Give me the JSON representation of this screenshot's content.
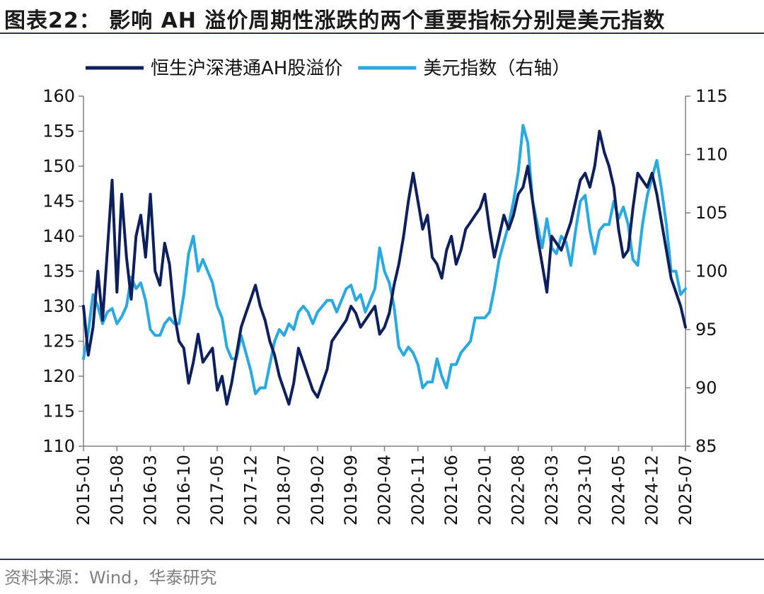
{
  "header": {
    "title": "图表22：  影响 AH 溢价周期性涨跌的两个重要指标分别是美元指数"
  },
  "footer": {
    "source": "资料来源：Wind，华泰研究"
  },
  "chart_data": {
    "type": "line",
    "x_ticks": [
      "2015-01",
      "2015-08",
      "2016-03",
      "2016-10",
      "2017-05",
      "2017-12",
      "2018-07",
      "2019-02",
      "2019-09",
      "2020-04",
      "2020-11",
      "2021-06",
      "2022-01",
      "2022-08",
      "2023-03",
      "2023-10",
      "2024-05",
      "2024-12",
      "2025-07"
    ],
    "y_left": {
      "ylim": [
        110,
        160
      ],
      "ticks": [
        "110",
        "115",
        "120",
        "125",
        "130",
        "135",
        "140",
        "145",
        "150",
        "155",
        "160"
      ]
    },
    "y_right": {
      "ylim": [
        85,
        115
      ],
      "ticks": [
        "85",
        "90",
        "95",
        "100",
        "105",
        "110",
        "115"
      ]
    },
    "legend_position": "top",
    "series": [
      {
        "name": "恒生沪深港通AH股溢价",
        "axis": "left",
        "color": "#0d1f5c",
        "points": [
          [
            "2015-01",
            130
          ],
          [
            "2015-02",
            123
          ],
          [
            "2015-03",
            127
          ],
          [
            "2015-04",
            135
          ],
          [
            "2015-05",
            128
          ],
          [
            "2015-06",
            138
          ],
          [
            "2015-07",
            148
          ],
          [
            "2015-08",
            132
          ],
          [
            "2015-09",
            146
          ],
          [
            "2015-10",
            137
          ],
          [
            "2015-11",
            131
          ],
          [
            "2015-12",
            140
          ],
          [
            "2016-01",
            143
          ],
          [
            "2016-02",
            137
          ],
          [
            "2016-03",
            146
          ],
          [
            "2016-04",
            135
          ],
          [
            "2016-05",
            133
          ],
          [
            "2016-06",
            139
          ],
          [
            "2016-07",
            136
          ],
          [
            "2016-08",
            129
          ],
          [
            "2016-09",
            125
          ],
          [
            "2016-10",
            124
          ],
          [
            "2016-11",
            119
          ],
          [
            "2016-12",
            122
          ],
          [
            "2017-01",
            126
          ],
          [
            "2017-02",
            122
          ],
          [
            "2017-03",
            123
          ],
          [
            "2017-04",
            124
          ],
          [
            "2017-05",
            118
          ],
          [
            "2017-06",
            120
          ],
          [
            "2017-07",
            116
          ],
          [
            "2017-08",
            119
          ],
          [
            "2017-09",
            123
          ],
          [
            "2017-10",
            127
          ],
          [
            "2017-11",
            129
          ],
          [
            "2017-12",
            131
          ],
          [
            "2018-01",
            133
          ],
          [
            "2018-02",
            130
          ],
          [
            "2018-03",
            128
          ],
          [
            "2018-04",
            125
          ],
          [
            "2018-05",
            123
          ],
          [
            "2018-06",
            120
          ],
          [
            "2018-07",
            118
          ],
          [
            "2018-08",
            116
          ],
          [
            "2018-09",
            119
          ],
          [
            "2018-10",
            124
          ],
          [
            "2018-11",
            122
          ],
          [
            "2018-12",
            120
          ],
          [
            "2019-01",
            118
          ],
          [
            "2019-02",
            117
          ],
          [
            "2019-03",
            119
          ],
          [
            "2019-04",
            121
          ],
          [
            "2019-05",
            125
          ],
          [
            "2019-06",
            126
          ],
          [
            "2019-07",
            127
          ],
          [
            "2019-08",
            128
          ],
          [
            "2019-09",
            130
          ],
          [
            "2019-10",
            129
          ],
          [
            "2019-11",
            127
          ],
          [
            "2019-12",
            128
          ],
          [
            "2020-01",
            129
          ],
          [
            "2020-02",
            130
          ],
          [
            "2020-03",
            126
          ],
          [
            "2020-04",
            127
          ],
          [
            "2020-05",
            129
          ],
          [
            "2020-06",
            133
          ],
          [
            "2020-07",
            136
          ],
          [
            "2020-08",
            140
          ],
          [
            "2020-09",
            145
          ],
          [
            "2020-10",
            149
          ],
          [
            "2020-11",
            145
          ],
          [
            "2020-12",
            141
          ],
          [
            "2021-01",
            143
          ],
          [
            "2021-02",
            137
          ],
          [
            "2021-03",
            136
          ],
          [
            "2021-04",
            134
          ],
          [
            "2021-05",
            138
          ],
          [
            "2021-06",
            140
          ],
          [
            "2021-07",
            136
          ],
          [
            "2021-08",
            138
          ],
          [
            "2021-09",
            141
          ],
          [
            "2021-10",
            142
          ],
          [
            "2021-11",
            143
          ],
          [
            "2021-12",
            144
          ],
          [
            "2022-01",
            146
          ],
          [
            "2022-02",
            141
          ],
          [
            "2022-03",
            137
          ],
          [
            "2022-04",
            140
          ],
          [
            "2022-05",
            143
          ],
          [
            "2022-06",
            141
          ],
          [
            "2022-07",
            143
          ],
          [
            "2022-08",
            146
          ],
          [
            "2022-09",
            147
          ],
          [
            "2022-10",
            150
          ],
          [
            "2022-11",
            145
          ],
          [
            "2022-12",
            140
          ],
          [
            "2023-01",
            136
          ],
          [
            "2023-02",
            132
          ],
          [
            "2023-03",
            140
          ],
          [
            "2023-04",
            139
          ],
          [
            "2023-05",
            138
          ],
          [
            "2023-06",
            140
          ],
          [
            "2023-07",
            142
          ],
          [
            "2023-08",
            145
          ],
          [
            "2023-09",
            148
          ],
          [
            "2023-10",
            149
          ],
          [
            "2023-11",
            147
          ],
          [
            "2023-12",
            150
          ],
          [
            "2024-01",
            155
          ],
          [
            "2024-02",
            152
          ],
          [
            "2024-03",
            150
          ],
          [
            "2024-04",
            147
          ],
          [
            "2024-05",
            141
          ],
          [
            "2024-06",
            137
          ],
          [
            "2024-07",
            138
          ],
          [
            "2024-08",
            144
          ],
          [
            "2024-09",
            149
          ],
          [
            "2024-10",
            148
          ],
          [
            "2024-11",
            147
          ],
          [
            "2024-12",
            149
          ],
          [
            "2025-01",
            146
          ],
          [
            "2025-02",
            142
          ],
          [
            "2025-03",
            138
          ],
          [
            "2025-04",
            134
          ],
          [
            "2025-05",
            132
          ],
          [
            "2025-06",
            130
          ],
          [
            "2025-07",
            127
          ]
        ]
      },
      {
        "name": "美元指数（右轴）",
        "axis": "right",
        "color": "#29a9e1",
        "points": [
          [
            "2015-01",
            92.5
          ],
          [
            "2015-02",
            94.8
          ],
          [
            "2015-03",
            98
          ],
          [
            "2015-04",
            97
          ],
          [
            "2015-05",
            95.5
          ],
          [
            "2015-06",
            96.5
          ],
          [
            "2015-07",
            96.8
          ],
          [
            "2015-08",
            95.5
          ],
          [
            "2015-09",
            96.1
          ],
          [
            "2015-10",
            97
          ],
          [
            "2015-11",
            99.5
          ],
          [
            "2015-12",
            98.5
          ],
          [
            "2016-01",
            99
          ],
          [
            "2016-02",
            97.5
          ],
          [
            "2016-03",
            95
          ],
          [
            "2016-04",
            94.5
          ],
          [
            "2016-05",
            94.5
          ],
          [
            "2016-06",
            95.5
          ],
          [
            "2016-07",
            96
          ],
          [
            "2016-08",
            95.5
          ],
          [
            "2016-09",
            95.5
          ],
          [
            "2016-10",
            98
          ],
          [
            "2016-11",
            101.5
          ],
          [
            "2016-12",
            103
          ],
          [
            "2017-01",
            100
          ],
          [
            "2017-02",
            101
          ],
          [
            "2017-03",
            100
          ],
          [
            "2017-04",
            99
          ],
          [
            "2017-05",
            97
          ],
          [
            "2017-06",
            96
          ],
          [
            "2017-07",
            93.5
          ],
          [
            "2017-08",
            92.5
          ],
          [
            "2017-09",
            92.5
          ],
          [
            "2017-10",
            94.5
          ],
          [
            "2017-11",
            93
          ],
          [
            "2017-12",
            91.5
          ],
          [
            "2018-01",
            89.5
          ],
          [
            "2018-02",
            90
          ],
          [
            "2018-03",
            90
          ],
          [
            "2018-04",
            92
          ],
          [
            "2018-05",
            94
          ],
          [
            "2018-06",
            95
          ],
          [
            "2018-07",
            94.5
          ],
          [
            "2018-08",
            95.5
          ],
          [
            "2018-09",
            95
          ],
          [
            "2018-10",
            96.5
          ],
          [
            "2018-11",
            97
          ],
          [
            "2018-12",
            96.5
          ],
          [
            "2019-01",
            95.5
          ],
          [
            "2019-02",
            96.5
          ],
          [
            "2019-03",
            97
          ],
          [
            "2019-04",
            97.5
          ],
          [
            "2019-05",
            97.5
          ],
          [
            "2019-06",
            96.5
          ],
          [
            "2019-07",
            97.5
          ],
          [
            "2019-08",
            98.5
          ],
          [
            "2019-09",
            98.8
          ],
          [
            "2019-10",
            97.5
          ],
          [
            "2019-11",
            98
          ],
          [
            "2019-12",
            96.5
          ],
          [
            "2020-01",
            97.5
          ],
          [
            "2020-02",
            98.5
          ],
          [
            "2020-03",
            102
          ],
          [
            "2020-04",
            100
          ],
          [
            "2020-05",
            99
          ],
          [
            "2020-06",
            97
          ],
          [
            "2020-07",
            93.5
          ],
          [
            "2020-08",
            92.8
          ],
          [
            "2020-09",
            93.5
          ],
          [
            "2020-10",
            93
          ],
          [
            "2020-11",
            92
          ],
          [
            "2020-12",
            90
          ],
          [
            "2021-01",
            90.5
          ],
          [
            "2021-02",
            90.5
          ],
          [
            "2021-03",
            92.5
          ],
          [
            "2021-04",
            91
          ],
          [
            "2021-05",
            90
          ],
          [
            "2021-06",
            92
          ],
          [
            "2021-07",
            92
          ],
          [
            "2021-08",
            93
          ],
          [
            "2021-09",
            93.5
          ],
          [
            "2021-10",
            94
          ],
          [
            "2021-11",
            96
          ],
          [
            "2021-12",
            96
          ],
          [
            "2022-01",
            96
          ],
          [
            "2022-02",
            96.5
          ],
          [
            "2022-03",
            98.5
          ],
          [
            "2022-04",
            101
          ],
          [
            "2022-05",
            102.5
          ],
          [
            "2022-06",
            104
          ],
          [
            "2022-07",
            106
          ],
          [
            "2022-08",
            108.5
          ],
          [
            "2022-09",
            112.5
          ],
          [
            "2022-10",
            111
          ],
          [
            "2022-11",
            106
          ],
          [
            "2022-12",
            104
          ],
          [
            "2023-01",
            102
          ],
          [
            "2023-02",
            104.5
          ],
          [
            "2023-03",
            102
          ],
          [
            "2023-04",
            101.5
          ],
          [
            "2023-05",
            103
          ],
          [
            "2023-06",
            102.5
          ],
          [
            "2023-07",
            100.5
          ],
          [
            "2023-08",
            103.5
          ],
          [
            "2023-09",
            106
          ],
          [
            "2023-10",
            106.5
          ],
          [
            "2023-11",
            103.5
          ],
          [
            "2023-12",
            101.5
          ],
          [
            "2024-01",
            103.5
          ],
          [
            "2024-02",
            104
          ],
          [
            "2024-03",
            104
          ],
          [
            "2024-04",
            106
          ],
          [
            "2024-05",
            104.5
          ],
          [
            "2024-06",
            105.5
          ],
          [
            "2024-07",
            104
          ],
          [
            "2024-08",
            101
          ],
          [
            "2024-09",
            100.5
          ],
          [
            "2024-10",
            104
          ],
          [
            "2024-11",
            106.5
          ],
          [
            "2024-12",
            108
          ],
          [
            "2025-01",
            109.5
          ],
          [
            "2025-02",
            107
          ],
          [
            "2025-03",
            104
          ],
          [
            "2025-04",
            100
          ],
          [
            "2025-05",
            100
          ],
          [
            "2025-06",
            98
          ],
          [
            "2025-07",
            98.5
          ]
        ]
      }
    ]
  }
}
